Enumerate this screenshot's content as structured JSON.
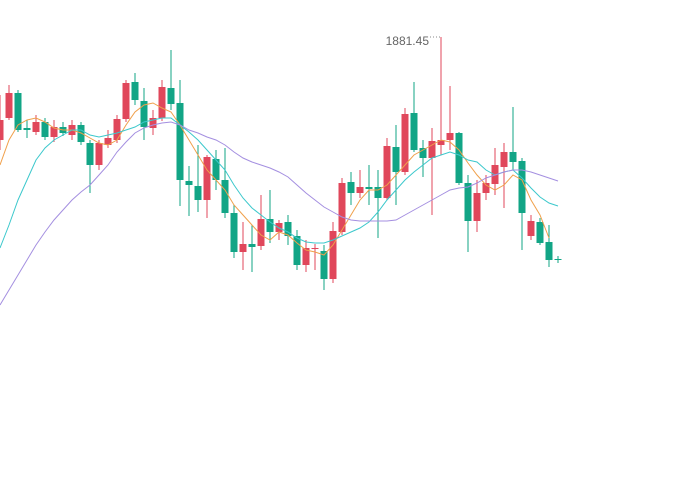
{
  "chart_data": {
    "type": "candlestick",
    "categories": [
      null,
      null,
      null,
      null,
      null,
      null,
      null,
      null,
      null,
      null,
      null,
      null,
      null,
      null,
      null,
      null,
      null,
      null,
      null,
      null,
      null,
      null,
      null,
      null,
      null,
      null,
      null,
      null,
      null,
      null,
      null,
      null,
      null,
      null,
      null,
      null,
      null,
      null,
      null,
      null,
      null,
      null,
      null,
      null,
      null,
      null,
      null,
      null,
      null,
      null,
      null,
      null,
      null,
      null,
      null,
      null,
      null,
      null,
      null,
      null,
      null,
      null,
      null
    ],
    "open": [
      1840.25,
      1849.05,
      1859.05,
      1845.05,
      1843.45,
      1847.45,
      1841.45,
      1845.45,
      1842.25,
      1846.25,
      1839.05,
      1830.25,
      1838.25,
      1840.25,
      1848.65,
      1863.45,
      1855.85,
      1845.05,
      1849.05,
      1861.05,
      1855.05,
      1823.85,
      1821.85,
      1816.25,
      1832.65,
      1824.25,
      1811.05,
      1795.45,
      1798.65,
      1797.85,
      1808.65,
      1803.45,
      1807.45,
      1801.85,
      1790.25,
      1796.65,
      1795.85,
      1784.65,
      1803.45,
      1823.45,
      1819.05,
      1821.45,
      1821.45,
      1817.05,
      1837.45,
      1827.45,
      1851.05,
      1837.05,
      1833.05,
      1838.25,
      1840.25,
      1843.05,
      1823.05,
      1807.85,
      1819.05,
      1822.65,
      1829.45,
      1835.45,
      1831.85,
      1801.85,
      1807.45,
      1799.45,
      1792.65
    ],
    "high": [
      1858.25,
      1862.25,
      1860.25,
      1848.25,
      1850.25,
      1849.05,
      1848.25,
      1847.45,
      1848.25,
      1847.45,
      1840.25,
      1840.25,
      1844.25,
      1850.25,
      1864.25,
      1867.05,
      1861.05,
      1852.25,
      1864.25,
      1876.25,
      1864.25,
      1829.85,
      1838.25,
      1834.25,
      1836.25,
      1837.05,
      1814.25,
      1807.45,
      1806.25,
      1818.25,
      1820.25,
      1808.25,
      1810.25,
      1804.25,
      1800.25,
      1798.65,
      1798.25,
      1807.45,
      1825.05,
      1827.45,
      1828.25,
      1830.25,
      1828.25,
      1841.05,
      1846.25,
      1853.05,
      1863.45,
      1840.25,
      1845.05,
      1881.45,
      1861.85,
      1843.45,
      1826.25,
      1824.25,
      1826.25,
      1837.05,
      1839.05,
      1853.45,
      1833.05,
      1810.25,
      1809.05,
      1806.25,
      1793.85
    ],
    "low": [
      1836.25,
      1848.25,
      1843.45,
      1841.05,
      1842.25,
      1840.25,
      1839.45,
      1841.85,
      1840.25,
      1838.25,
      1819.05,
      1828.25,
      1837.05,
      1839.05,
      1847.45,
      1854.25,
      1840.25,
      1842.25,
      1847.85,
      1852.25,
      1813.85,
      1809.85,
      1811.45,
      1809.05,
      1820.25,
      1809.05,
      1793.05,
      1788.25,
      1787.45,
      1796.25,
      1799.05,
      1800.25,
      1798.25,
      1788.25,
      1787.45,
      1788.25,
      1780.25,
      1783.05,
      1802.25,
      1814.25,
      1817.05,
      1814.25,
      1801.05,
      1816.25,
      1814.25,
      1826.25,
      1835.45,
      1825.45,
      1810.25,
      1834.25,
      1836.25,
      1822.25,
      1795.45,
      1803.45,
      1816.25,
      1818.25,
      1813.05,
      1828.25,
      1796.25,
      1800.25,
      1798.25,
      1789.45,
      1791.05
    ],
    "close": [
      1848.25,
      1859.05,
      1844.25,
      1844.25,
      1847.45,
      1841.45,
      1845.45,
      1843.05,
      1846.25,
      1839.45,
      1830.25,
      1839.05,
      1841.05,
      1848.65,
      1863.05,
      1856.25,
      1845.45,
      1849.05,
      1861.45,
      1854.65,
      1824.25,
      1822.25,
      1816.25,
      1833.45,
      1824.25,
      1811.05,
      1795.45,
      1798.65,
      1797.45,
      1808.65,
      1803.45,
      1807.05,
      1801.85,
      1790.25,
      1797.05,
      1797.05,
      1784.65,
      1803.85,
      1823.05,
      1819.05,
      1821.45,
      1820.65,
      1817.05,
      1837.85,
      1827.45,
      1850.65,
      1836.25,
      1833.05,
      1839.85,
      1840.25,
      1843.05,
      1823.05,
      1807.85,
      1819.05,
      1823.05,
      1830.25,
      1835.45,
      1831.45,
      1811.05,
      1807.85,
      1799.05,
      1792.25,
      1792.25
    ],
    "up_color": "#e0475b",
    "down_color": "#12a586",
    "series": [
      {
        "color": "#f0a04b",
        "values": [
          1830.25,
          1840.25,
          1846.25,
          1848.25,
          1849.05,
          1847.45,
          1845.05,
          1844.25,
          1844.25,
          1843.05,
          1841.05,
          1839.05,
          1838.25,
          1840.25,
          1846.25,
          1851.45,
          1854.25,
          1855.05,
          1853.05,
          1851.45,
          1846.25,
          1840.25,
          1834.25,
          1828.25,
          1824.25,
          1820.25,
          1814.25,
          1810.25,
          1806.25,
          1802.25,
          1800.25,
          1803.45,
          1802.25,
          1799.05,
          1796.25,
          1795.45,
          1794.25,
          1798.25,
          1804.25,
          1810.25,
          1816.25,
          1820.25,
          1820.25,
          1822.25,
          1826.25,
          1830.25,
          1834.25,
          1836.25,
          1838.25,
          1840.25,
          1839.45,
          1836.25,
          1831.05,
          1826.25,
          1822.25,
          1820.25,
          1822.25,
          1826.25,
          1824.25,
          1816.25,
          1810.25,
          1801.05,
          null
        ]
      },
      {
        "color": "#3cc8cc",
        "values": [
          1797.05,
          1806.25,
          1816.25,
          1824.25,
          1832.25,
          1837.05,
          1840.25,
          1842.25,
          1844.25,
          1844.25,
          1842.25,
          1841.45,
          1842.25,
          1843.05,
          1844.25,
          1845.45,
          1847.45,
          1848.25,
          1849.05,
          1849.05,
          1846.25,
          1843.45,
          1840.25,
          1836.25,
          1832.25,
          1828.25,
          1822.25,
          1817.05,
          1813.05,
          1810.25,
          1807.45,
          1805.05,
          1803.45,
          1801.05,
          1799.45,
          1799.05,
          1799.05,
          1800.25,
          1801.85,
          1803.45,
          1805.05,
          1807.45,
          1811.45,
          1816.25,
          1820.25,
          1824.25,
          1827.45,
          1830.25,
          1833.05,
          1834.25,
          1835.45,
          1834.25,
          1832.25,
          1831.45,
          1828.25,
          1826.25,
          1827.45,
          1828.25,
          1825.05,
          1821.05,
          1817.45,
          1815.05,
          1813.85
        ]
      },
      {
        "color": "#a48fe0",
        "values": [
          1774.25,
          1780.25,
          1786.25,
          1792.25,
          1798.25,
          1803.45,
          1808.25,
          1812.25,
          1816.25,
          1819.45,
          1822.25,
          1826.25,
          1830.25,
          1835.45,
          1839.45,
          1843.05,
          1845.05,
          1846.25,
          1847.05,
          1847.45,
          1846.25,
          1844.25,
          1843.05,
          1841.45,
          1840.25,
          1838.25,
          1835.45,
          1833.05,
          1831.45,
          1830.25,
          1829.05,
          1827.45,
          1825.45,
          1822.25,
          1819.05,
          1816.25,
          1813.45,
          1811.45,
          1809.45,
          1808.25,
          1807.85,
          1807.85,
          1807.85,
          1807.85,
          1808.25,
          1810.25,
          1812.25,
          1814.25,
          1816.25,
          1818.25,
          1820.25,
          1821.05,
          1821.45,
          1823.05,
          1825.05,
          1826.25,
          1827.45,
          1828.25,
          1828.25,
          1827.45,
          1826.25,
          1825.05,
          1823.85
        ]
      }
    ],
    "ylim": [
      1701.05,
      1896.25
    ]
  }
}
